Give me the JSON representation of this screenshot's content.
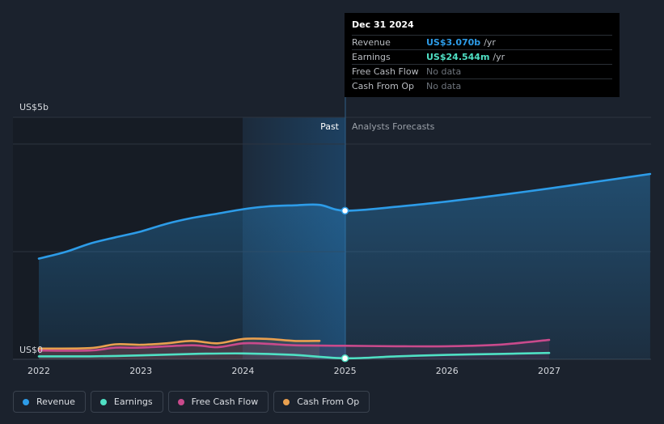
{
  "chart_data": {
    "type": "line",
    "y_axis": {
      "top_label": "US$5b",
      "bottom_label": "US$0",
      "ylim": [
        0,
        5
      ]
    },
    "x_axis": {
      "ticks": [
        "2022",
        "2023",
        "2024",
        "2025",
        "2026",
        "2027"
      ],
      "tick_values": [
        2022,
        2023,
        2024,
        2025,
        2026,
        2027
      ],
      "xlim": [
        2021.74,
        2027.99
      ]
    },
    "past_start": 2024.0,
    "forecast_start": 2025.0,
    "past_label": "Past",
    "forecast_label": "Analysts Forecasts",
    "series": [
      {
        "name": "Revenue",
        "color": "#2d9ce8",
        "unit": "b",
        "points": [
          [
            2022.0,
            2.08
          ],
          [
            2022.25,
            2.21
          ],
          [
            2022.5,
            2.39
          ],
          [
            2022.75,
            2.52
          ],
          [
            2023.0,
            2.64
          ],
          [
            2023.25,
            2.8
          ],
          [
            2023.5,
            2.92
          ],
          [
            2023.75,
            3.01
          ],
          [
            2024.0,
            3.1
          ],
          [
            2024.25,
            3.16
          ],
          [
            2024.5,
            3.18
          ],
          [
            2024.75,
            3.19
          ],
          [
            2025.0,
            3.07
          ],
          [
            2025.5,
            3.15
          ],
          [
            2026.0,
            3.26
          ],
          [
            2026.5,
            3.39
          ],
          [
            2027.0,
            3.53
          ],
          [
            2027.5,
            3.68
          ],
          [
            2027.99,
            3.83
          ]
        ]
      },
      {
        "name": "Earnings",
        "color": "#4fe0c4",
        "unit": "m",
        "points": [
          [
            2022.0,
            0.06
          ],
          [
            2022.5,
            0.06
          ],
          [
            2023.0,
            0.08
          ],
          [
            2023.5,
            0.11
          ],
          [
            2024.0,
            0.12
          ],
          [
            2024.5,
            0.09
          ],
          [
            2025.0,
            0.02
          ],
          [
            2025.5,
            0.06
          ],
          [
            2026.0,
            0.09
          ],
          [
            2026.5,
            0.11
          ],
          [
            2027.0,
            0.13
          ]
        ]
      },
      {
        "name": "Free Cash Flow",
        "color": "#c94a8c",
        "unit": "",
        "points": [
          [
            2022.0,
            0.18
          ],
          [
            2022.5,
            0.18
          ],
          [
            2022.75,
            0.24
          ],
          [
            2023.0,
            0.24
          ],
          [
            2023.5,
            0.29
          ],
          [
            2023.75,
            0.25
          ],
          [
            2024.0,
            0.33
          ],
          [
            2024.25,
            0.32
          ],
          [
            2024.5,
            0.29
          ],
          [
            2025.0,
            0.28
          ],
          [
            2025.5,
            0.27
          ],
          [
            2026.0,
            0.27
          ],
          [
            2026.5,
            0.3
          ],
          [
            2027.0,
            0.4
          ]
        ]
      },
      {
        "name": "Cash From Op",
        "color": "#e9a04f",
        "unit": "",
        "points": [
          [
            2022.0,
            0.22
          ],
          [
            2022.5,
            0.23
          ],
          [
            2022.75,
            0.31
          ],
          [
            2023.0,
            0.3
          ],
          [
            2023.25,
            0.33
          ],
          [
            2023.5,
            0.38
          ],
          [
            2023.75,
            0.33
          ],
          [
            2024.0,
            0.42
          ],
          [
            2024.25,
            0.42
          ],
          [
            2024.5,
            0.38
          ],
          [
            2024.75,
            0.38
          ]
        ]
      }
    ]
  },
  "tooltip": {
    "date": "Dec 31 2024",
    "rows": [
      {
        "label": "Revenue",
        "value": "US$3.070b",
        "unit": "/yr",
        "color": "#2d9ce8"
      },
      {
        "label": "Earnings",
        "value": "US$24.544m",
        "unit": "/yr",
        "color": "#4fe0c4"
      },
      {
        "label": "Free Cash Flow",
        "value": "No data"
      },
      {
        "label": "Cash From Op",
        "value": "No data"
      }
    ]
  },
  "legend": [
    {
      "label": "Revenue",
      "color": "#2d9ce8"
    },
    {
      "label": "Earnings",
      "color": "#4fe0c4"
    },
    {
      "label": "Free Cash Flow",
      "color": "#c94a8c"
    },
    {
      "label": "Cash From Op",
      "color": "#e9a04f"
    }
  ]
}
